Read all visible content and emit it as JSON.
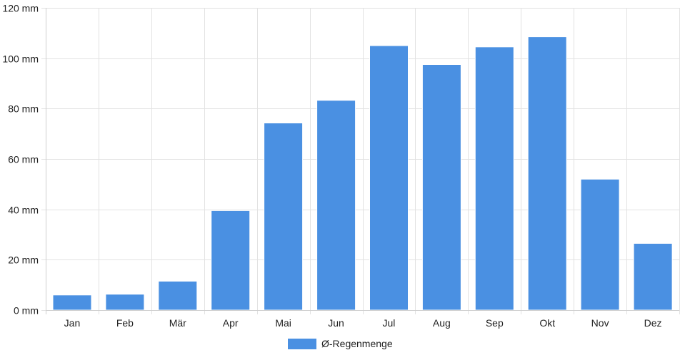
{
  "colors": {
    "bar": "#4a90e2"
  },
  "chart_data": {
    "type": "bar",
    "categories": [
      "Jan",
      "Feb",
      "Mär",
      "Apr",
      "Mai",
      "Jun",
      "Jul",
      "Aug",
      "Sep",
      "Okt",
      "Nov",
      "Dez"
    ],
    "series": [
      {
        "name": "Ø-Regenmenge",
        "values": [
          6,
          6.3,
          11.5,
          39.5,
          74.3,
          83.3,
          105,
          97.5,
          104.5,
          108.5,
          52,
          26.5
        ]
      }
    ],
    "y_ticks": [
      "0 mm",
      "20 mm",
      "40 mm",
      "60 mm",
      "80 mm",
      "100 mm",
      "120 mm"
    ],
    "ylim": [
      0,
      120
    ],
    "y_unit": "mm",
    "grid": true,
    "legend_position": "bottom"
  }
}
